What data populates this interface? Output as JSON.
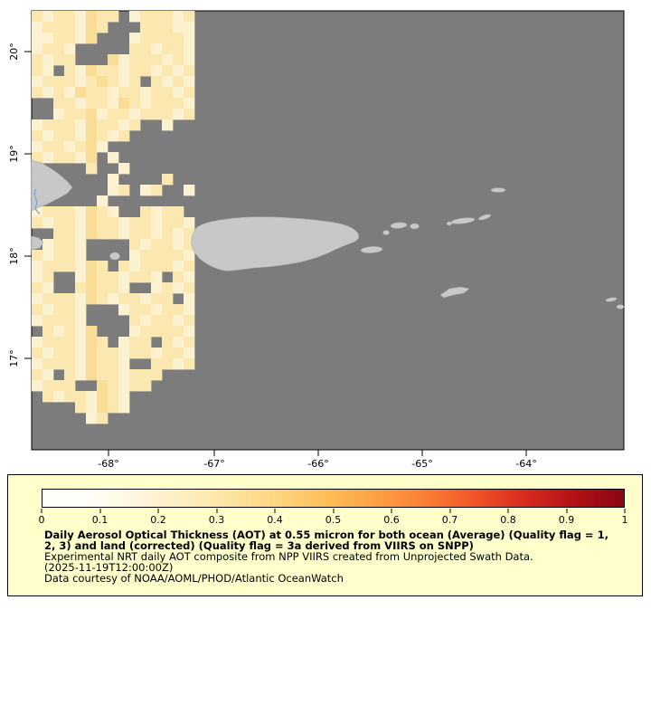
{
  "map": {
    "lat_tick_labels": [
      "20°",
      "19°",
      "18°",
      "17°"
    ],
    "lon_tick_labels": [
      "-68°",
      "-67°",
      "-66°",
      "-65°",
      "-64°"
    ],
    "colors": {
      "no_data_gray": "#7c7c7c",
      "land_gray": "#c8c8c8",
      "coast_blue": "#6fa8dc",
      "frame_black": "#000000"
    },
    "aot_palette": {
      "a": "#fdf2cf",
      "b": "#fbe8b0",
      "c": "#f7dd96"
    },
    "aot_grid": [
      "babbacbb.abbbab",
      "abbbacb...bbbaa",
      "aabbac...abbbba",
      "abba.....bbabba",
      "babb...cabbbaba",
      "ba.bacbbabbabab",
      "abbbabcbab.baba",
      "babacbbabbabbab",
      "..bbabbacbabbba",
      "..abbcabbabbbab",
      "abbbacbbab..a..",
      "babbacbab......",
      "abbabca........",
      "babbac.a.......",
      ".....b..a......",
      ".......a....b..",
      ".......ab.ab..a",
      "......a........",
      "abbbacba..babb.",
      "babbacbbabbabba",
      "..bbacbbabbabab",
      ".abba....babbab",
      "babba....abbbba",
      "abbbacb.babbbab",
      "ab..acbbabba.ba",
      "ba..bcbba..abab",
      "abbbacbabbabb.a",
      "babba...abbabba",
      "abbba....babbab",
      ".babac...abbbba",
      "abbbacb.abb.bab",
      "babbacbbabbabba",
      "abbbacbba..bbab",
      "ba.bacbbabbb...",
      "abbb..cbabb....",
      ".babbacba......",
      "....bacba......",
      ".....ab........",
      "...............",
      "...............",
      "..............."
    ]
  },
  "colorbar": {
    "min": 0,
    "max": 1,
    "tick_labels": [
      "0",
      "0.1",
      "0.2",
      "0.3",
      "0.4",
      "0.5",
      "0.6",
      "0.7",
      "0.8",
      "0.9",
      "1"
    ],
    "gradient_stops": [
      "#ffffff",
      "#fffdf5",
      "#fef6dd",
      "#fdedbe",
      "#fde29c",
      "#fdd27a",
      "#fdba55",
      "#fd9c42",
      "#f97b32",
      "#ef5127",
      "#d62a20",
      "#b11118",
      "#8c0610"
    ]
  },
  "legend": {
    "background_color": "#ffffcc",
    "title_line1": "Daily Aerosol Optical Thickness (AOT) at 0.55 micron for both ocean (Average) (Quality flag = 1,",
    "title_line2": "2, 3) and land (corrected) (Quality flag = 3a derived from VIIRS on SNPP)",
    "description": "Experimental NRT daily AOT composite from NPP VIIRS created from Unprojected Swath Data.",
    "timestamp": "(2025-11-19T12:00:00Z)",
    "credit": "Data courtesy of NOAA/AOML/PHOD/Atlantic OceanWatch"
  }
}
